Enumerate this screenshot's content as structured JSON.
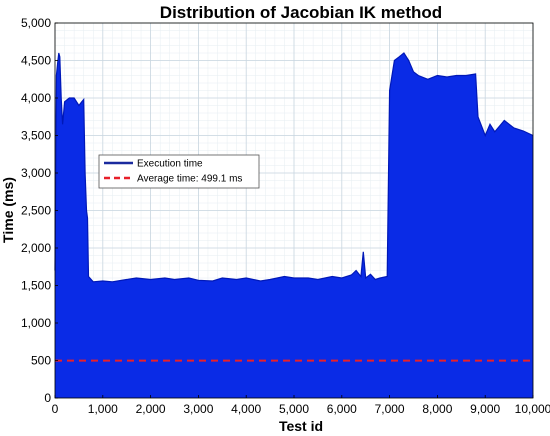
{
  "chart_data": {
    "type": "area",
    "title": "Distribution of Jacobian IK method",
    "xlabel": "Test id",
    "ylabel": "Time (ms)",
    "xlim": [
      0,
      10000
    ],
    "ylim": [
      0,
      5000
    ],
    "x_ticks": [
      0,
      1000,
      2000,
      3000,
      4000,
      5000,
      6000,
      7000,
      8000,
      9000,
      10000
    ],
    "x_tick_labels": [
      "0",
      "1,000",
      "2,000",
      "3,000",
      "4,000",
      "5,000",
      "6,000",
      "7,000",
      "8,000",
      "9,000",
      "10,000"
    ],
    "y_ticks": [
      0,
      500,
      1000,
      1500,
      2000,
      2500,
      3000,
      3500,
      4000,
      4500,
      5000
    ],
    "y_tick_labels": [
      "0",
      "500",
      "1,000",
      "1,500",
      "2,000",
      "2,500",
      "3,000",
      "3,500",
      "4,000",
      "4,500",
      "5,000"
    ],
    "grid": true,
    "minor_grid": true,
    "legend_position": "middle-left",
    "series": [
      {
        "name": "Execution time",
        "style": "filled-band",
        "color": "#0a2be6",
        "x": [
          0,
          30,
          60,
          80,
          100,
          130,
          160,
          200,
          300,
          400,
          500,
          560,
          600,
          630,
          660,
          680,
          700,
          800,
          1000,
          1200,
          1500,
          1700,
          2000,
          2300,
          2500,
          2800,
          3000,
          3300,
          3500,
          3800,
          4000,
          4300,
          4500,
          4800,
          5000,
          5300,
          5500,
          5800,
          6000,
          6200,
          6300,
          6400,
          6450,
          6500,
          6600,
          6700,
          6800,
          6950,
          7000,
          7100,
          7200,
          7300,
          7400,
          7500,
          7600,
          7800,
          8000,
          8200,
          8400,
          8600,
          8800,
          8850,
          9000,
          9100,
          9200,
          9400,
          9600,
          9800,
          10000
        ],
        "upper": [
          1700,
          4300,
          4500,
          4600,
          4550,
          4000,
          3650,
          3950,
          4000,
          4000,
          3900,
          3950,
          3980,
          3000,
          2500,
          2400,
          1620,
          1550,
          1560,
          1550,
          1580,
          1600,
          1580,
          1600,
          1580,
          1600,
          1570,
          1560,
          1600,
          1580,
          1600,
          1560,
          1580,
          1620,
          1600,
          1600,
          1580,
          1620,
          1600,
          1640,
          1700,
          1620,
          1950,
          1600,
          1650,
          1580,
          1600,
          1620,
          4100,
          4500,
          4550,
          4600,
          4500,
          4350,
          4300,
          4250,
          4300,
          4280,
          4300,
          4300,
          4320,
          3750,
          3500,
          3650,
          3550,
          3700,
          3600,
          3560,
          3500
        ],
        "lower": [
          0,
          0,
          0,
          0,
          0,
          0,
          0,
          0,
          0,
          0,
          0,
          0,
          0,
          0,
          0,
          0,
          0,
          0,
          0,
          0,
          0,
          0,
          0,
          0,
          0,
          0,
          0,
          0,
          0,
          0,
          0,
          0,
          0,
          0,
          0,
          0,
          0,
          0,
          0,
          0,
          0,
          0,
          0,
          0,
          0,
          0,
          0,
          0,
          0,
          0,
          0,
          0,
          0,
          0,
          0,
          0,
          0,
          0,
          0,
          0,
          0,
          0,
          0,
          0,
          0,
          0,
          0,
          0,
          0
        ]
      },
      {
        "name": "Average time: 499.1 ms",
        "style": "dashed-line",
        "color": "#e8202a",
        "x": [
          0,
          10000
        ],
        "y": [
          499.1,
          499.1
        ]
      }
    ]
  },
  "colors": {
    "execution": "#0a2be6",
    "execution_dark": "#0018b8",
    "average": "#e8202a",
    "legend_exec_line": "#1a2a9e"
  }
}
